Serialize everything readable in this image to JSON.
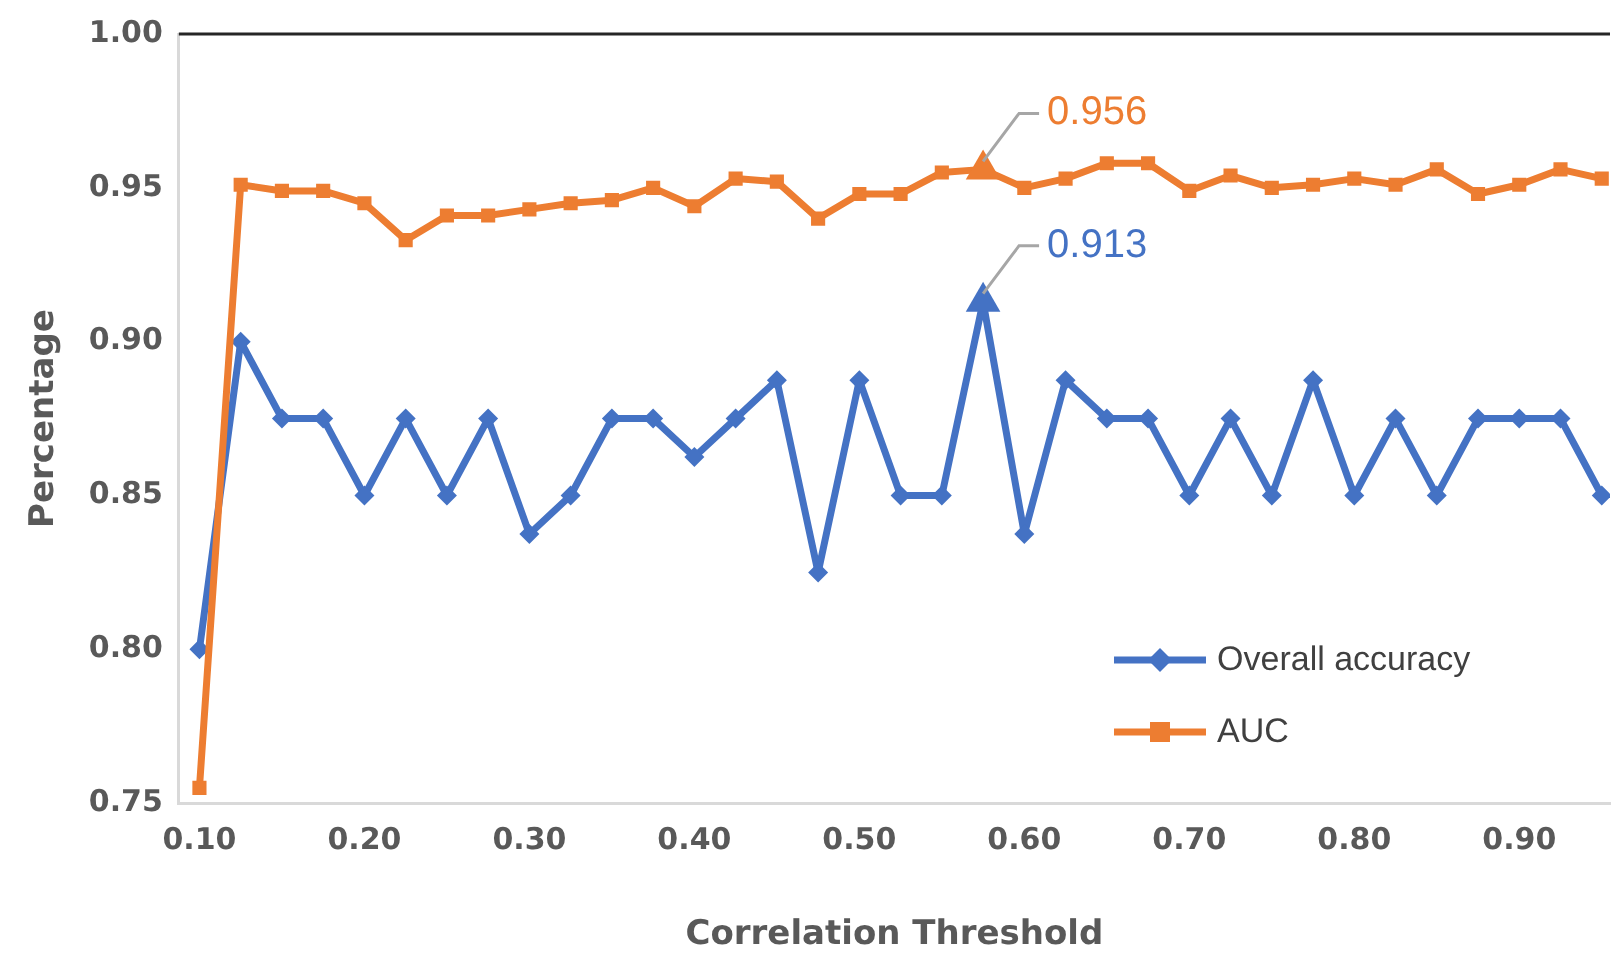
{
  "chart_data": {
    "type": "line",
    "xlabel": "Correlation Threshold",
    "ylabel": "Percentage",
    "x": [
      0.1,
      0.125,
      0.15,
      0.175,
      0.2,
      0.225,
      0.25,
      0.275,
      0.3,
      0.325,
      0.35,
      0.375,
      0.4,
      0.425,
      0.45,
      0.475,
      0.5,
      0.525,
      0.55,
      0.575,
      0.6,
      0.625,
      0.65,
      0.675,
      0.7,
      0.725,
      0.75,
      0.775,
      0.8,
      0.825,
      0.85,
      0.875,
      0.9,
      0.925,
      0.95
    ],
    "series": [
      {
        "name": "Overall accuracy",
        "color": "#4472c4",
        "marker": "diamond",
        "values": [
          0.8,
          0.9,
          0.875,
          0.875,
          0.85,
          0.875,
          0.85,
          0.875,
          0.8375,
          0.85,
          0.875,
          0.875,
          0.8625,
          0.875,
          0.8875,
          0.825,
          0.8875,
          0.85,
          0.85,
          0.913,
          0.8375,
          0.8875,
          0.875,
          0.875,
          0.85,
          0.875,
          0.85,
          0.8875,
          0.85,
          0.875,
          0.85,
          0.875,
          0.875,
          0.875,
          0.85
        ]
      },
      {
        "name": "AUC",
        "color": "#ed7d31",
        "marker": "square",
        "values": [
          0.755,
          0.951,
          0.949,
          0.949,
          0.945,
          0.933,
          0.941,
          0.941,
          0.943,
          0.945,
          0.946,
          0.95,
          0.944,
          0.953,
          0.952,
          0.94,
          0.948,
          0.948,
          0.955,
          0.956,
          0.95,
          0.953,
          0.958,
          0.958,
          0.949,
          0.954,
          0.95,
          0.951,
          0.953,
          0.951,
          0.956,
          0.948,
          0.951,
          0.956,
          0.953
        ]
      }
    ],
    "annotations": [
      {
        "text": "0.956",
        "x": 0.575,
        "y": 0.956
      },
      {
        "text": "0.913",
        "x": 0.575,
        "y": 0.913
      }
    ],
    "xlim": [
      0.0875,
      0.955
    ],
    "xticks": [
      {
        "value": 0.1,
        "label": "0.10"
      },
      {
        "value": 0.2,
        "label": "0.20"
      },
      {
        "value": 0.3,
        "label": "0.30"
      },
      {
        "value": 0.4,
        "label": "0.40"
      },
      {
        "value": 0.5,
        "label": "0.50"
      },
      {
        "value": 0.6,
        "label": "0.60"
      },
      {
        "value": 0.7,
        "label": "0.70"
      },
      {
        "value": 0.8,
        "label": "0.80"
      },
      {
        "value": 0.9,
        "label": "0.90"
      }
    ],
    "ylim": [
      0.75,
      1.0
    ],
    "yticks": [
      {
        "value": 0.75,
        "label": "0.75"
      },
      {
        "value": 0.8,
        "label": "0.80"
      },
      {
        "value": 0.85,
        "label": "0.85"
      },
      {
        "value": 0.9,
        "label": "0.90"
      },
      {
        "value": 0.95,
        "label": "0.95"
      },
      {
        "value": 1.0,
        "label": "1.00"
      }
    ],
    "grid": false,
    "legend": "bottom right",
    "line_style": "solid"
  }
}
